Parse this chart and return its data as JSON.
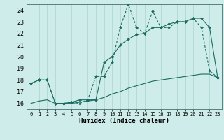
{
  "xlabel": "Humidex (Indice chaleur)",
  "xlim": [
    -0.5,
    23.5
  ],
  "ylim": [
    15.5,
    24.5
  ],
  "yticks": [
    16,
    17,
    18,
    19,
    20,
    21,
    22,
    23,
    24
  ],
  "xticks": [
    0,
    1,
    2,
    3,
    4,
    5,
    6,
    7,
    8,
    9,
    10,
    11,
    12,
    13,
    14,
    15,
    16,
    17,
    18,
    19,
    20,
    21,
    22,
    23
  ],
  "bg_color": "#ceecea",
  "grid_color": "#aad4d0",
  "line_color": "#1a6b60",
  "line1_x": [
    0,
    1,
    2,
    3,
    4,
    5,
    6,
    7,
    8,
    9,
    10,
    11,
    12,
    13,
    14,
    15,
    16,
    17,
    18,
    19,
    20,
    21,
    22,
    23
  ],
  "line1_y": [
    17.7,
    18.0,
    18.0,
    16.0,
    16.0,
    16.1,
    16.0,
    16.3,
    18.3,
    18.3,
    19.5,
    22.5,
    24.5,
    22.5,
    22.0,
    23.9,
    22.5,
    22.5,
    23.0,
    23.0,
    23.3,
    22.5,
    18.8,
    18.2
  ],
  "line2_x": [
    0,
    1,
    2,
    3,
    4,
    5,
    6,
    7,
    8,
    9,
    10,
    11,
    12,
    13,
    14,
    15,
    16,
    17,
    18,
    19,
    20,
    21,
    22,
    23
  ],
  "line2_y": [
    17.7,
    18.0,
    18.0,
    16.0,
    16.0,
    16.1,
    16.3,
    16.3,
    16.3,
    19.5,
    20.0,
    21.0,
    21.5,
    21.9,
    22.0,
    22.5,
    22.5,
    22.8,
    23.0,
    23.0,
    23.3,
    23.3,
    22.5,
    18.2
  ],
  "line3_x": [
    0,
    1,
    2,
    3,
    4,
    5,
    6,
    7,
    8,
    9,
    10,
    11,
    12,
    13,
    14,
    15,
    16,
    17,
    18,
    19,
    20,
    21,
    22,
    23
  ],
  "line3_y": [
    16.0,
    16.2,
    16.3,
    16.0,
    16.0,
    16.0,
    16.1,
    16.2,
    16.3,
    16.5,
    16.8,
    17.0,
    17.3,
    17.5,
    17.7,
    17.9,
    18.0,
    18.1,
    18.2,
    18.3,
    18.4,
    18.5,
    18.5,
    18.2
  ]
}
